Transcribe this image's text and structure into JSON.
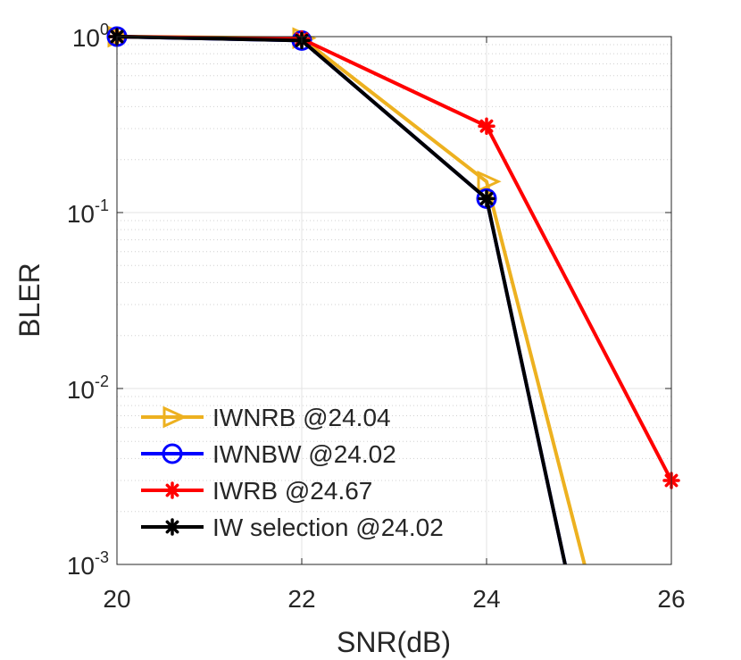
{
  "chart_data": {
    "type": "line",
    "title": "",
    "xlabel": "SNR(dB)",
    "ylabel": "BLER",
    "xlim": [
      20,
      26
    ],
    "ylim": [
      0.001,
      1
    ],
    "yscale": "log",
    "grid": true,
    "legend_position": "bottom-left",
    "x_ticks": [
      {
        "value": 20,
        "label": "20"
      },
      {
        "value": 22,
        "label": "22"
      },
      {
        "value": 24,
        "label": "24"
      },
      {
        "value": 26,
        "label": "26"
      }
    ],
    "y_ticks": [
      {
        "value": 1,
        "base": "10",
        "exp": "0"
      },
      {
        "value": 0.1,
        "base": "10",
        "exp": "-1"
      },
      {
        "value": 0.01,
        "base": "10",
        "exp": "-2"
      },
      {
        "value": 0.001,
        "base": "10",
        "exp": "-3"
      }
    ],
    "series": [
      {
        "name": "IWNRB @24.04",
        "color": "#EDB120",
        "marker": "triangle-right",
        "x": [
          20,
          22,
          24,
          25.06
        ],
        "y": [
          1,
          0.98,
          0.15,
          0.001
        ]
      },
      {
        "name": "IWNBW @24.02",
        "color": "#0000FF",
        "marker": "circle",
        "x": [
          20,
          22,
          24,
          24.85
        ],
        "y": [
          1,
          0.95,
          0.12,
          0.001
        ]
      },
      {
        "name": "IWRB @24.67",
        "color": "#FF0000",
        "marker": "asterisk",
        "x": [
          20,
          22,
          24,
          26
        ],
        "y": [
          1,
          0.97,
          0.31,
          0.003
        ]
      },
      {
        "name": "IW selection @24.02",
        "color": "#000000",
        "marker": "asterisk",
        "x": [
          20,
          22,
          24,
          24.85
        ],
        "y": [
          1,
          0.95,
          0.12,
          0.001
        ]
      }
    ]
  }
}
